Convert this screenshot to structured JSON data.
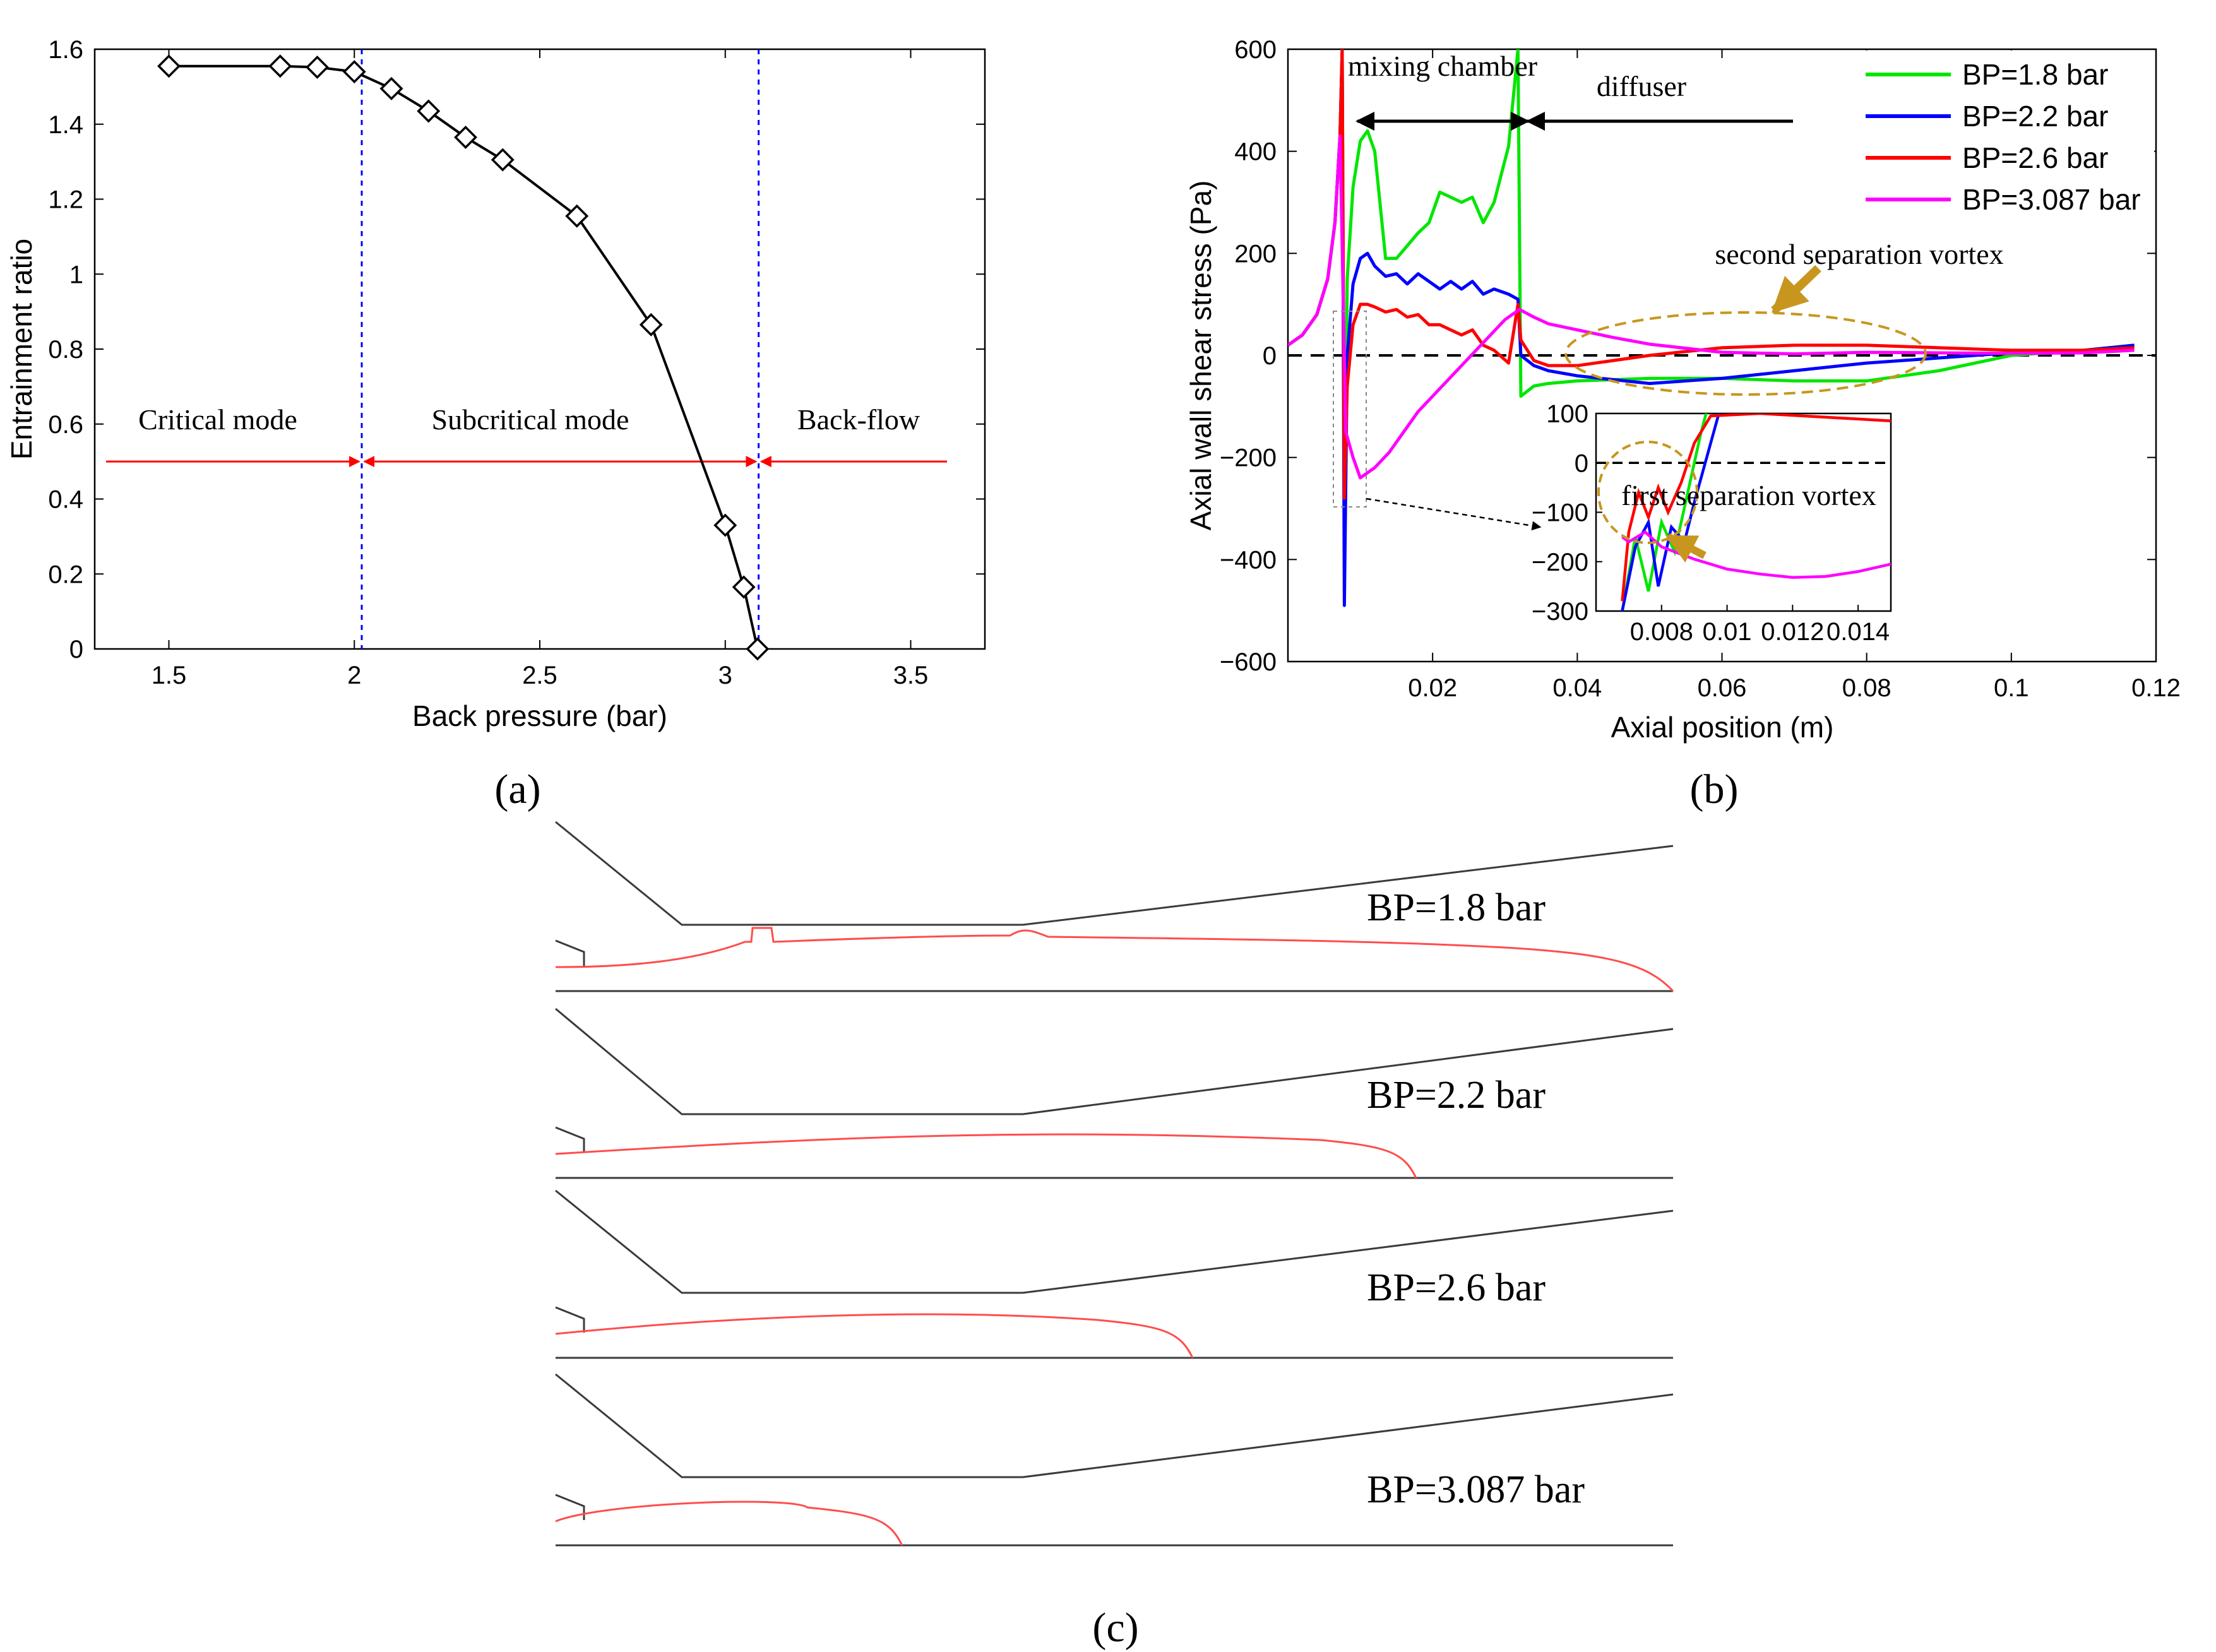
{
  "panel_labels": {
    "a": "(a)",
    "b": "(b)",
    "c": "(c)"
  },
  "chart_data": [
    {
      "id": "a",
      "type": "line",
      "title": "",
      "xlabel": "Back pressure (bar)",
      "ylabel": "Entrainment ratio",
      "xlim": [
        1.3,
        3.7
      ],
      "ylim": [
        0,
        1.6
      ],
      "xticks": [
        1.5,
        2,
        2.5,
        3,
        3.5
      ],
      "xtick_labels": [
        "1.5",
        "2",
        "2.5",
        "3",
        "3.5"
      ],
      "yticks": [
        0,
        0.2,
        0.4,
        0.6,
        0.8,
        1,
        1.2,
        1.4,
        1.6
      ],
      "ytick_labels": [
        "0",
        "0.2",
        "0.4",
        "0.6",
        "0.8",
        "1",
        "1.2",
        "1.4",
        "1.6"
      ],
      "x": [
        1.5,
        1.8,
        1.9,
        2.0,
        2.1,
        2.2,
        2.3,
        2.4,
        2.6,
        2.8,
        3.0,
        3.05,
        3.087
      ],
      "y": [
        1.555,
        1.555,
        1.552,
        1.54,
        1.495,
        1.435,
        1.365,
        1.305,
        1.155,
        0.865,
        0.33,
        0.165,
        0.0
      ],
      "vlines": [
        2.02,
        3.09
      ],
      "arrow_y": 0.5,
      "annotations": [
        "Critical mode",
        "Subcritical mode",
        "Back-flow"
      ]
    },
    {
      "id": "b",
      "type": "line",
      "title": "",
      "xlabel": "Axial position (m)",
      "ylabel": "Axial wall shear stress (Pa)",
      "xlim": [
        0,
        0.12
      ],
      "ylim": [
        -600,
        600
      ],
      "xticks": [
        0.02,
        0.04,
        0.06,
        0.08,
        0.1,
        0.12
      ],
      "xtick_labels": [
        "0.02",
        "0.04",
        "0.06",
        "0.08",
        "0.1",
        "0.12"
      ],
      "yticks": [
        -600,
        -400,
        -200,
        0,
        200,
        400,
        600
      ],
      "ytick_labels": [
        "−600",
        "−400",
        "−200",
        "0",
        "200",
        "400",
        "600"
      ],
      "legend_position": "top-right",
      "series": [
        {
          "name": "BP=1.8 bar",
          "color": "#00e600",
          "x": [
            0,
            0.002,
            0.004,
            0.0055,
            0.0065,
            0.0072,
            0.0075,
            0.0078,
            0.0082,
            0.009,
            0.01,
            0.011,
            0.012,
            0.0135,
            0.015,
            0.0165,
            0.018,
            0.0195,
            0.021,
            0.0225,
            0.024,
            0.0255,
            0.027,
            0.0285,
            0.0305,
            0.0318,
            0.0322,
            0.034,
            0.036,
            0.04,
            0.05,
            0.06,
            0.07,
            0.08,
            0.09,
            0.1,
            0.11,
            0.117
          ],
          "y": [
            20,
            40,
            80,
            150,
            260,
            430,
            600,
            -330,
            150,
            330,
            420,
            440,
            400,
            190,
            190,
            215,
            240,
            260,
            320,
            310,
            300,
            310,
            260,
            300,
            410,
            600,
            -80,
            -60,
            -55,
            -50,
            -45,
            -45,
            -50,
            -50,
            -30,
            0,
            10,
            20
          ]
        },
        {
          "name": "BP=2.2 bar",
          "color": "#0000ff",
          "x": [
            0,
            0.002,
            0.004,
            0.0055,
            0.0065,
            0.0072,
            0.0075,
            0.0078,
            0.0082,
            0.009,
            0.01,
            0.011,
            0.012,
            0.0135,
            0.015,
            0.0165,
            0.018,
            0.0195,
            0.021,
            0.0225,
            0.024,
            0.0255,
            0.027,
            0.0285,
            0.0305,
            0.0318,
            0.0322,
            0.034,
            0.036,
            0.04,
            0.05,
            0.06,
            0.07,
            0.08,
            0.09,
            0.1,
            0.11,
            0.117
          ],
          "y": [
            20,
            40,
            80,
            150,
            260,
            430,
            600,
            -490,
            0,
            140,
            190,
            200,
            175,
            155,
            160,
            140,
            160,
            145,
            130,
            145,
            130,
            145,
            120,
            130,
            120,
            110,
            0,
            -20,
            -30,
            -40,
            -55,
            -45,
            -30,
            -15,
            -5,
            5,
            10,
            20
          ]
        },
        {
          "name": "BP=2.6 bar",
          "color": "#ff0000",
          "x": [
            0,
            0.002,
            0.004,
            0.0055,
            0.0065,
            0.0072,
            0.0075,
            0.0078,
            0.0082,
            0.009,
            0.01,
            0.011,
            0.012,
            0.0135,
            0.015,
            0.0165,
            0.018,
            0.0195,
            0.021,
            0.0225,
            0.024,
            0.0255,
            0.027,
            0.0285,
            0.0305,
            0.0318,
            0.0322,
            0.034,
            0.036,
            0.04,
            0.05,
            0.06,
            0.07,
            0.08,
            0.09,
            0.1,
            0.11,
            0.117
          ],
          "y": [
            20,
            40,
            80,
            150,
            260,
            430,
            600,
            -280,
            -60,
            60,
            100,
            100,
            95,
            85,
            90,
            75,
            80,
            60,
            60,
            50,
            40,
            50,
            20,
            10,
            -15,
            100,
            30,
            -10,
            -20,
            -20,
            0,
            15,
            20,
            20,
            15,
            10,
            10,
            15
          ]
        },
        {
          "name": "BP=3.087 bar",
          "color": "#ff00ff",
          "x": [
            0,
            0.002,
            0.004,
            0.0055,
            0.0065,
            0.0072,
            0.008,
            0.009,
            0.01,
            0.012,
            0.014,
            0.016,
            0.018,
            0.02,
            0.022,
            0.024,
            0.026,
            0.028,
            0.03,
            0.032,
            0.034,
            0.036,
            0.04,
            0.045,
            0.05,
            0.06,
            0.07,
            0.08,
            0.09,
            0.1,
            0.11,
            0.117
          ],
          "y": [
            20,
            40,
            80,
            150,
            260,
            430,
            -150,
            -200,
            -240,
            -220,
            -190,
            -150,
            -110,
            -80,
            -50,
            -20,
            10,
            40,
            70,
            90,
            75,
            62,
            50,
            35,
            22,
            6,
            3,
            6,
            5,
            4,
            5,
            10
          ]
        }
      ],
      "annotations": [
        "mixing chamber",
        "diffuser",
        "second separation vortex"
      ],
      "inset": {
        "xlim": [
          0.006,
          0.015
        ],
        "ylim": [
          -300,
          100
        ],
        "xticks": [
          0.008,
          0.01,
          0.012,
          0.014
        ],
        "xtick_labels": [
          "0.008",
          "0.01",
          "0.012",
          "0.014"
        ],
        "yticks": [
          -300,
          -200,
          -100,
          0,
          100
        ],
        "ytick_labels": [
          "−300",
          "−200",
          "−100",
          "0",
          "100"
        ],
        "annotation": "first separation vortex"
      }
    }
  ],
  "panel_c": {
    "cases": [
      {
        "label": "BP=1.8 bar",
        "sep_end": 1.0
      },
      {
        "label": "BP=2.2 bar",
        "sep_end": 0.77
      },
      {
        "label": "BP=2.6 bar",
        "sep_end": 0.57
      },
      {
        "label": "BP=3.087 bar",
        "sep_end": 0.31
      }
    ]
  }
}
